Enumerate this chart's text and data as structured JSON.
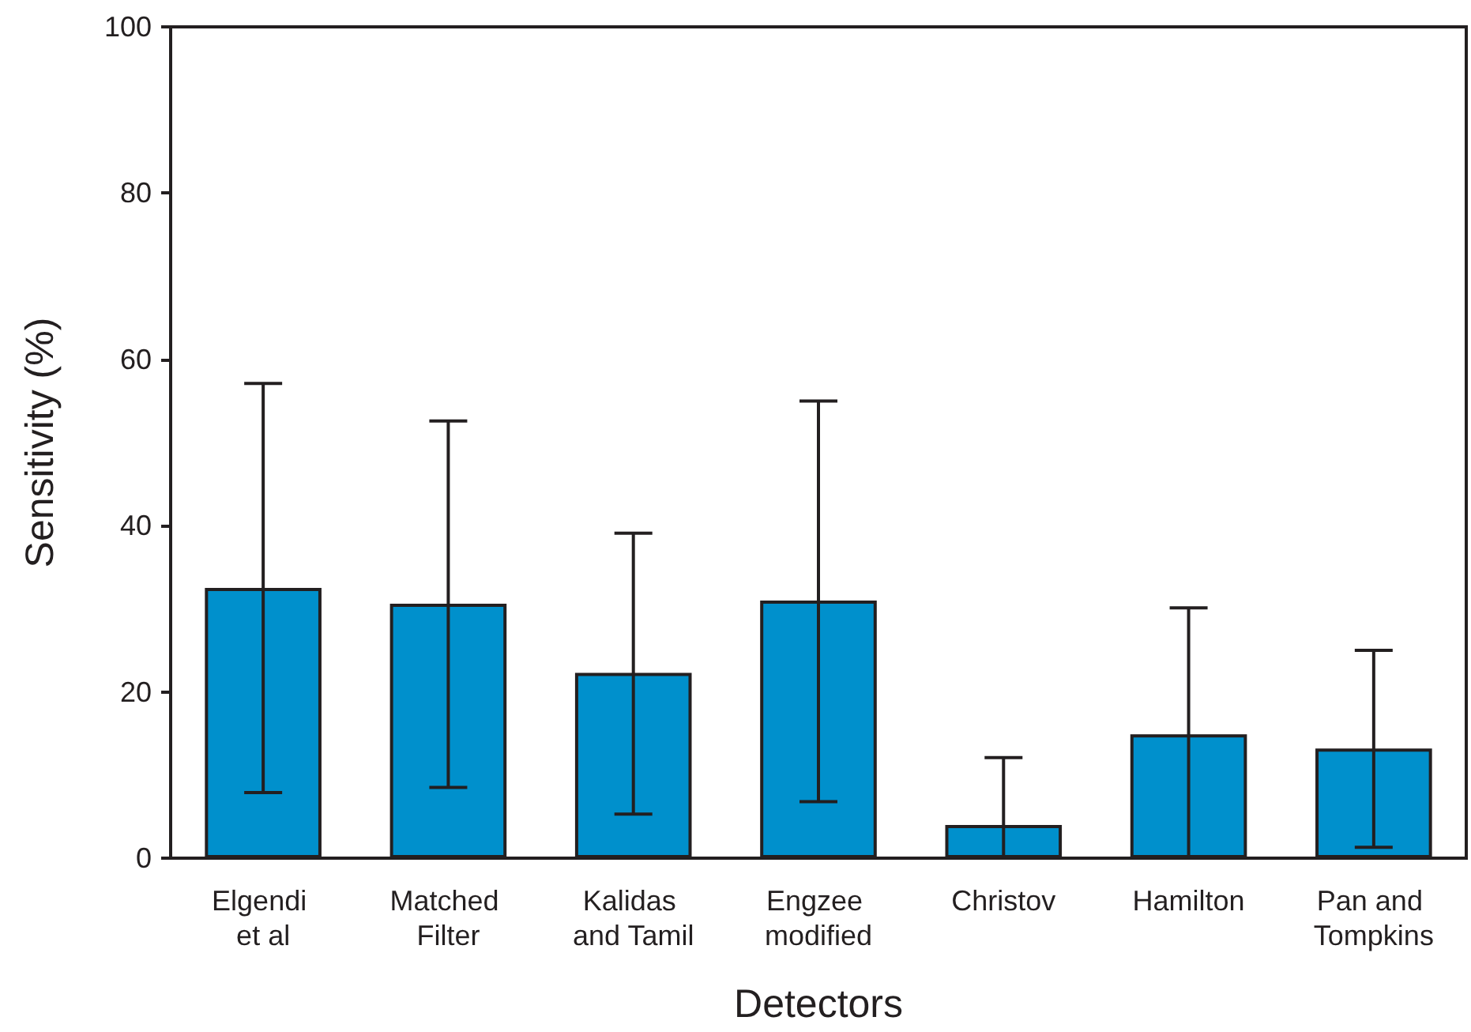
{
  "chart_data": {
    "type": "bar",
    "xlabel": "Detectors",
    "ylabel": "Sensitivity (%)",
    "categories": [
      "Elgendi et al",
      "Matched Filter",
      "Kalidas and Tamil",
      "Engzee modified",
      "Christov",
      "Hamilton",
      "Pan and Tompkins"
    ],
    "values": [
      32.5,
      30.6,
      22.3,
      31.0,
      4.0,
      14.9,
      13.2
    ],
    "errors": [
      [
        7.9,
        57.1
      ],
      [
        8.5,
        52.6
      ],
      [
        5.3,
        39.1
      ],
      [
        6.8,
        55.0
      ],
      [
        0,
        12.1
      ],
      [
        0,
        30.1
      ],
      [
        1.3,
        25.0
      ]
    ],
    "color": "#0090cc",
    "ylim": [
      0,
      100
    ],
    "yticks": [
      0,
      20,
      40,
      60,
      80,
      100
    ],
    "grid": false
  }
}
